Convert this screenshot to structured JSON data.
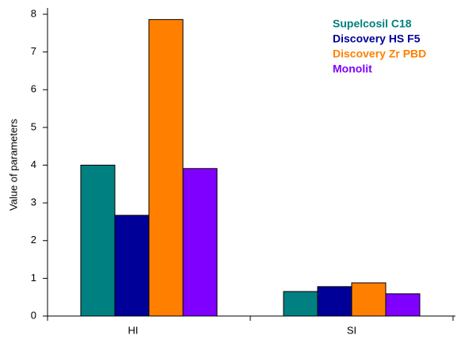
{
  "chart_data": {
    "type": "bar",
    "y_label": "Value of parameters",
    "categories": [
      "HI",
      "SI"
    ],
    "series": [
      {
        "name": "Supelcosil C18",
        "color": "#008080",
        "values": [
          4.0,
          0.65
        ]
      },
      {
        "name": "Discovery HS F5",
        "color": "#000099",
        "values": [
          2.67,
          0.78
        ]
      },
      {
        "name": "Discovery Zr PBD",
        "color": "#ff8000",
        "values": [
          7.86,
          0.88
        ]
      },
      {
        "name": "Monolit",
        "color": "#8000ff",
        "values": [
          3.91,
          0.59
        ]
      }
    ],
    "ylim": [
      0,
      8
    ],
    "yticks": [
      0,
      1,
      2,
      3,
      4,
      5,
      6,
      7,
      8
    ],
    "legend": "top-right"
  }
}
